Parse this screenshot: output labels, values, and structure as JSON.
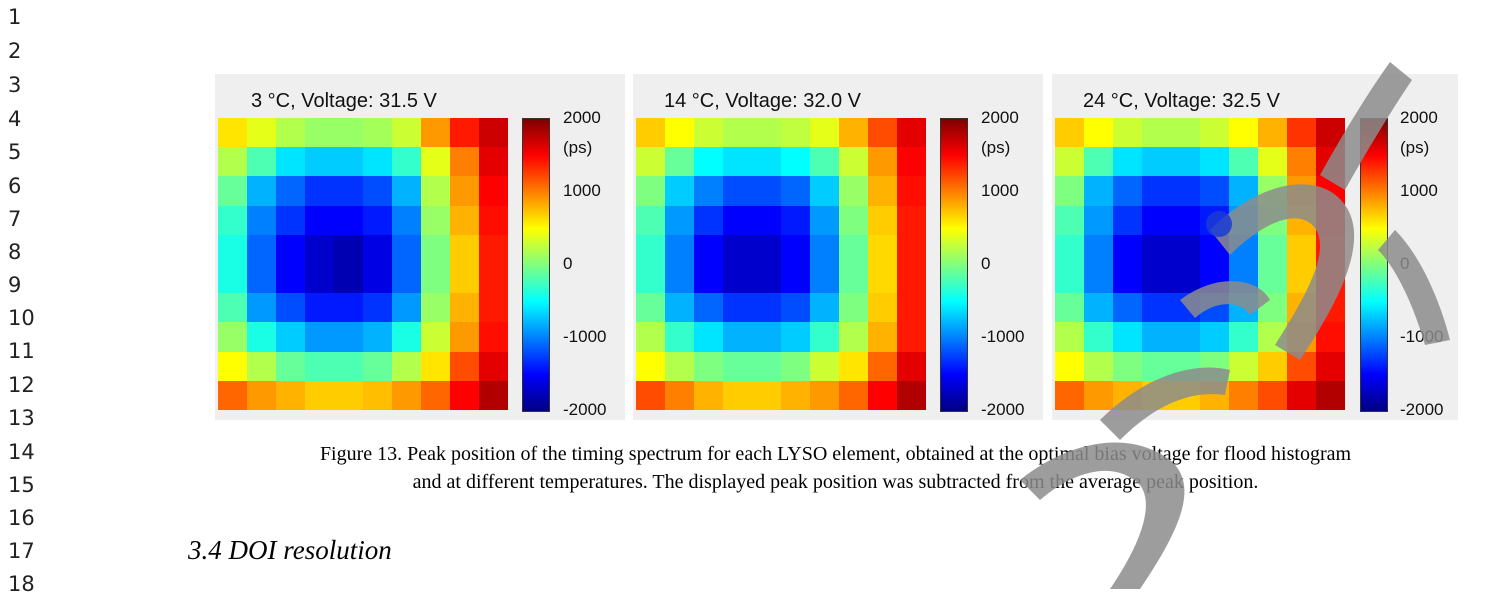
{
  "line_numbers": [
    "1",
    "2",
    "3",
    "4",
    "5",
    "6",
    "7",
    "8",
    "9",
    "10",
    "11",
    "12",
    "13",
    "14",
    "15",
    "16",
    "17",
    "18"
  ],
  "figure": {
    "panels": [
      {
        "title": "3 °C, Voltage: 31.5 V",
        "colorbar_ticks": [
          "2000",
          "(ps)",
          "1000",
          "0",
          "-1000",
          "-2000"
        ]
      },
      {
        "title": "14 °C, Voltage: 32.0 V",
        "colorbar_ticks": [
          "2000",
          "(ps)",
          "1000",
          "0",
          "-1000",
          "-2000"
        ]
      },
      {
        "title": "24 °C, Voltage: 32.5 V",
        "colorbar_ticks": [
          "2000",
          "(ps)",
          "1000",
          "0",
          "-1000",
          "-2000"
        ]
      }
    ],
    "caption_line1": "Figure 13. Peak position of the timing spectrum for each LYSO element, obtained at the optimal bias voltage for flood histogram",
    "caption_line2": "and at different temperatures. The displayed peak position was subtracted from the average peak position.",
    "colormap": [
      "#00007f",
      "#0000ff",
      "#007fff",
      "#00ffff",
      "#7fff7f",
      "#ffff00",
      "#ff7f00",
      "#ff0000",
      "#7f0000"
    ]
  },
  "chart_data": [
    {
      "type": "heatmap",
      "title": "3 °C, Voltage: 31.5 V",
      "colorbar_range": [
        -2000,
        2000
      ],
      "colorbar_unit": "(ps)",
      "values": [
        [
          600,
          400,
          200,
          100,
          100,
          150,
          300,
          900,
          1400,
          1700
        ],
        [
          200,
          -200,
          -600,
          -700,
          -700,
          -600,
          -300,
          400,
          1000,
          1600
        ],
        [
          -100,
          -800,
          -1100,
          -1300,
          -1300,
          -1200,
          -800,
          200,
          900,
          1500
        ],
        [
          -300,
          -1000,
          -1300,
          -1500,
          -1500,
          -1400,
          -1000,
          100,
          800,
          1450
        ],
        [
          -400,
          -1100,
          -1500,
          -1700,
          -1800,
          -1600,
          -1100,
          0,
          700,
          1400
        ],
        [
          -400,
          -1100,
          -1500,
          -1700,
          -1800,
          -1600,
          -1100,
          0,
          700,
          1400
        ],
        [
          -200,
          -900,
          -1200,
          -1400,
          -1400,
          -1300,
          -900,
          100,
          800,
          1400
        ],
        [
          100,
          -400,
          -700,
          -900,
          -900,
          -800,
          -400,
          300,
          900,
          1450
        ],
        [
          500,
          200,
          -100,
          -200,
          -200,
          -100,
          200,
          600,
          1200,
          1600
        ],
        [
          1100,
          900,
          800,
          700,
          700,
          750,
          900,
          1100,
          1500,
          1800
        ]
      ]
    },
    {
      "type": "heatmap",
      "title": "14 °C, Voltage: 32.0 V",
      "colorbar_range": [
        -2000,
        2000
      ],
      "colorbar_unit": "(ps)",
      "values": [
        [
          700,
          500,
          300,
          200,
          200,
          250,
          400,
          800,
          1200,
          1600
        ],
        [
          300,
          -100,
          -500,
          -600,
          -600,
          -500,
          -200,
          300,
          900,
          1500
        ],
        [
          0,
          -700,
          -1000,
          -1200,
          -1200,
          -1100,
          -700,
          100,
          800,
          1450
        ],
        [
          -200,
          -900,
          -1300,
          -1500,
          -1500,
          -1400,
          -900,
          0,
          700,
          1400
        ],
        [
          -300,
          -1000,
          -1500,
          -1700,
          -1700,
          -1500,
          -1000,
          -100,
          650,
          1400
        ],
        [
          -300,
          -1000,
          -1500,
          -1700,
          -1700,
          -1500,
          -1000,
          -100,
          650,
          1400
        ],
        [
          -100,
          -800,
          -1100,
          -1300,
          -1300,
          -1200,
          -800,
          0,
          700,
          1400
        ],
        [
          200,
          -300,
          -600,
          -800,
          -800,
          -700,
          -300,
          200,
          800,
          1400
        ],
        [
          500,
          200,
          0,
          -100,
          -100,
          0,
          300,
          600,
          1100,
          1600
        ],
        [
          1200,
          1000,
          800,
          700,
          700,
          800,
          900,
          1100,
          1500,
          1800
        ]
      ]
    },
    {
      "type": "heatmap",
      "title": "24 °C, Voltage: 32.5 V",
      "colorbar_range": [
        -2000,
        2000
      ],
      "colorbar_unit": "(ps)",
      "values": [
        [
          700,
          500,
          300,
          200,
          200,
          300,
          500,
          800,
          1300,
          1700
        ],
        [
          300,
          -200,
          -600,
          -700,
          -700,
          -600,
          -200,
          400,
          1000,
          1600
        ],
        [
          0,
          -800,
          -1100,
          -1300,
          -1300,
          -1200,
          -800,
          100,
          900,
          1500
        ],
        [
          -200,
          -900,
          -1300,
          -1500,
          -1500,
          -1400,
          -900,
          0,
          800,
          1450
        ],
        [
          -300,
          -1000,
          -1500,
          -1700,
          -1700,
          -1500,
          -1000,
          -100,
          700,
          1400
        ],
        [
          -300,
          -1000,
          -1500,
          -1700,
          -1700,
          -1500,
          -1000,
          -100,
          700,
          1400
        ],
        [
          -100,
          -800,
          -1100,
          -1300,
          -1300,
          -1200,
          -800,
          0,
          800,
          1400
        ],
        [
          200,
          -300,
          -600,
          -800,
          -800,
          -700,
          -300,
          200,
          900,
          1450
        ],
        [
          500,
          200,
          0,
          -100,
          -100,
          0,
          300,
          700,
          1200,
          1600
        ],
        [
          1100,
          900,
          800,
          700,
          700,
          800,
          1000,
          1200,
          1600,
          1800
        ]
      ]
    }
  ],
  "section": {
    "heading": "3.4 DOI resolution"
  }
}
